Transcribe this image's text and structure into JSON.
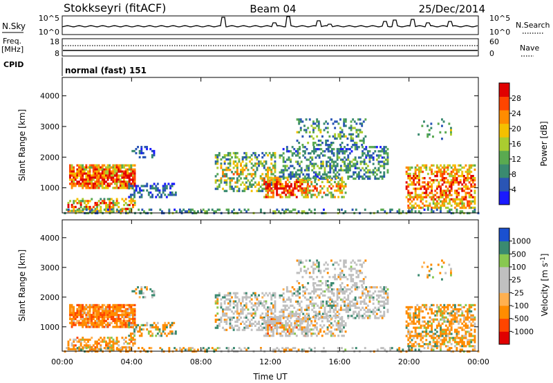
{
  "header": {
    "station": "Stokkseyri (fitACF)",
    "beam": "Beam 04",
    "date": "25/Dec/2014"
  },
  "noise_panel": {
    "left_label": "N.Sky",
    "left_tick_top": "10^5",
    "left_tick_bottom": "10^0",
    "right_tick_top": "10^5",
    "right_tick_bottom": "10^0",
    "right_label": "N.Search"
  },
  "freq_panel": {
    "left_label_line1": "Freq.",
    "left_label_line2": "[MHz]",
    "left_tick_top": "18",
    "left_tick_bottom": "8",
    "right_tick_top": "60",
    "right_tick_bottom": "0",
    "right_label": "Nave"
  },
  "cpid_panel": {
    "label": "CPID",
    "mode": "normal (fast) 151"
  },
  "colors": {
    "power_scale": [
      "#1a1aff",
      "#2a55b5",
      "#3a8a70",
      "#5aaa50",
      "#aacc30",
      "#f5c000",
      "#ff8c00",
      "#ff4500",
      "#e00000"
    ],
    "velocity_scale": [
      "#e00000",
      "#ff4500",
      "#ff8c00",
      "#ffb050",
      "#c0c0c0",
      "#c0c0c0",
      "#88c850",
      "#3a8a70",
      "#1a50d0"
    ]
  },
  "chart_data": [
    {
      "type": "heatmap",
      "title": "",
      "xlabel": "Time UT",
      "ylabel": "Slant Range [km]",
      "xlim": [
        "00:00",
        "24:00"
      ],
      "ylim": [
        180,
        4600
      ],
      "x_ticks": [
        "00:00",
        "04:00",
        "08:00",
        "12:00",
        "16:00",
        "20:00",
        "00:00"
      ],
      "y_ticks": [
        1000,
        2000,
        3000,
        4000
      ],
      "colorbar_label": "Power [dB]",
      "colorbar_ticks": [
        "4",
        "8",
        "12",
        "16",
        "20",
        "24",
        "28"
      ],
      "colorbar_range": [
        0,
        30
      ]
    },
    {
      "type": "heatmap",
      "title": "",
      "xlabel": "Time UT",
      "ylabel": "Slant Range [km]",
      "xlim": [
        "00:00",
        "24:00"
      ],
      "ylim": [
        180,
        4600
      ],
      "x_ticks": [
        "00:00",
        "04:00",
        "08:00",
        "12:00",
        "16:00",
        "20:00",
        "00:00"
      ],
      "y_ticks": [
        1000,
        2000,
        3000,
        4000
      ],
      "colorbar_label": "Velocity [m s^-1]",
      "colorbar_ticks": [
        "1000",
        "500",
        "100",
        "25",
        "-25",
        "-100",
        "-500",
        "-1000"
      ]
    }
  ]
}
